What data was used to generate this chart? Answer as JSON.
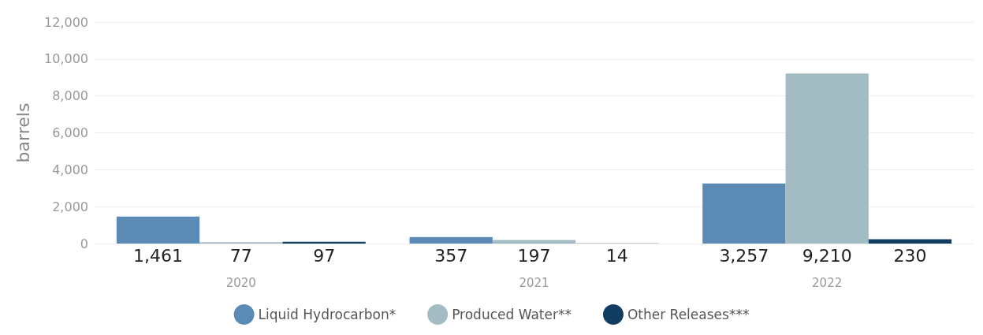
{
  "chart_data": {
    "type": "bar",
    "ylabel": "barrels",
    "categories": [
      "2020",
      "2021",
      "2022"
    ],
    "series": [
      {
        "name": "Liquid Hydrocarbon*",
        "color": "#5b8ab5",
        "values": [
          1461,
          357,
          3257
        ],
        "value_labels": [
          "1,461",
          "357",
          "3,257"
        ]
      },
      {
        "name": "Produced Water**",
        "color": "#a3bbc3",
        "values": [
          77,
          197,
          9210
        ],
        "value_labels": [
          "77",
          "197",
          "9,210"
        ]
      },
      {
        "name": "Other Releases***",
        "color": "#123d63",
        "values": [
          97,
          14,
          230
        ],
        "value_labels": [
          "97",
          "14",
          "230"
        ]
      }
    ],
    "ylim": [
      0,
      12000
    ],
    "yticks": [
      0,
      {
        "value": 2000,
        "label": "2,000"
      },
      {
        "value": 4000,
        "label": "4,000"
      },
      {
        "value": 6000,
        "label": "6,000"
      },
      {
        "value": 8000,
        "label": "8,000"
      },
      {
        "value": 10000,
        "label": "10,000"
      },
      {
        "value": 12000,
        "label": "12,000"
      }
    ],
    "grid": "y",
    "legend": "bottom"
  }
}
